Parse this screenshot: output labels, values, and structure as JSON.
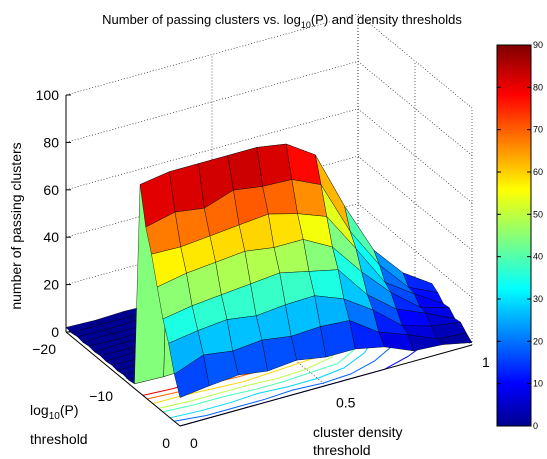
{
  "chart_data": {
    "type": "surface",
    "title": {
      "prefix": "Number of passing clusters vs. log",
      "sub": "10",
      "suffix": "(P) and density thresholds"
    },
    "zlabel": "number of passing clusters",
    "xlabel": {
      "prefix": "log",
      "sub": "10",
      "suffix": "(P)",
      "line2": "threshold"
    },
    "ylabel": {
      "line1": "cluster density",
      "line2": "threshold"
    },
    "x_ticks": [
      "−20",
      "−10",
      "0"
    ],
    "y_ticks": [
      "0",
      "0.5",
      "1"
    ],
    "z_ticks": [
      "0",
      "20",
      "40",
      "60",
      "80",
      "100"
    ],
    "xlim": [
      -20,
      0
    ],
    "ylim": [
      0,
      1
    ],
    "zlim": [
      0,
      100
    ],
    "grid": true,
    "colormap": "jet",
    "colorbar": {
      "ticks": [
        "0",
        "10",
        "20",
        "30",
        "40",
        "50",
        "60",
        "70",
        "80",
        "90"
      ],
      "range": [
        0,
        90
      ]
    },
    "step_x_threshold": -7,
    "surface_rows": [
      {
        "density": 0.0,
        "peak": 88
      },
      {
        "density": 0.1,
        "peak": 90
      },
      {
        "density": 0.2,
        "peak": 90
      },
      {
        "density": 0.3,
        "peak": 90
      },
      {
        "density": 0.4,
        "peak": 90
      },
      {
        "density": 0.5,
        "peak": 88
      },
      {
        "density": 0.6,
        "peak": 80
      },
      {
        "density": 0.7,
        "peak": 55
      },
      {
        "density": 0.8,
        "peak": 33
      },
      {
        "density": 0.9,
        "peak": 20
      },
      {
        "density": 1.0,
        "peak": 12
      }
    ]
  }
}
